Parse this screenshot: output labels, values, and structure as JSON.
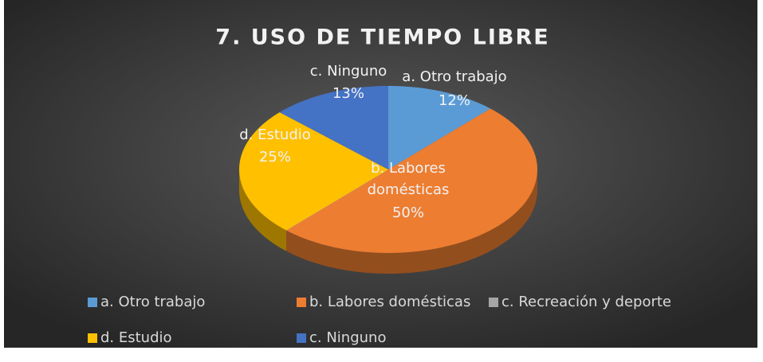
{
  "chart_data": {
    "type": "pie",
    "title": "7. USO DE TIEMPO LIBRE",
    "categories": [
      "a. Otro trabajo",
      "b. Labores domésticas",
      "c. Recreación y deporte",
      "d. Estudio",
      "c. Ninguno"
    ],
    "values": [
      12,
      50,
      0,
      25,
      13
    ],
    "value_labels": [
      "12%",
      "50%",
      null,
      "25%",
      "13%"
    ],
    "colors": [
      "#5b9bd5",
      "#ed7d31",
      "#a5a5a5",
      "#ffc000",
      "#4472c4"
    ],
    "legend": "bottom"
  }
}
